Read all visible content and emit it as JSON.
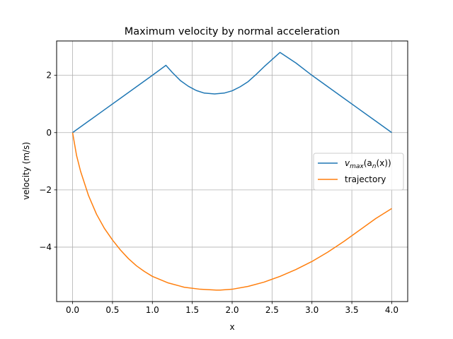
{
  "chart_data": {
    "type": "line",
    "title": "Maximum velocity by normal acceleration",
    "xlabel": "x",
    "ylabel": "velocity (m/s)",
    "xlim": [
      -0.2,
      4.2
    ],
    "ylim": [
      -5.9,
      3.2
    ],
    "xticks": [
      0.0,
      0.5,
      1.0,
      1.5,
      2.0,
      2.5,
      3.0,
      3.5,
      4.0
    ],
    "xtick_labels": [
      "0.0",
      "0.5",
      "1.0",
      "1.5",
      "2.0",
      "2.5",
      "3.0",
      "3.5",
      "4.0"
    ],
    "yticks": [
      2,
      0,
      -2,
      -4
    ],
    "ytick_labels": [
      "2",
      "0",
      "−2",
      "−4"
    ],
    "grid": true,
    "legend_position": "center-right",
    "series": [
      {
        "name": "v_max(a_n(x))",
        "legend_parts": {
          "v": "v",
          "max": "max",
          "open": "(a",
          "n": "n",
          "close": "(x))"
        },
        "color": "#1f77b4",
        "x": [
          0.0,
          0.2,
          0.4,
          0.6,
          0.8,
          1.0,
          1.17,
          1.25,
          1.35,
          1.45,
          1.55,
          1.65,
          1.78,
          1.9,
          2.0,
          2.1,
          2.2,
          2.3,
          2.4,
          2.5,
          2.6,
          2.8,
          3.0,
          3.2,
          3.4,
          3.6,
          3.8,
          4.0
        ],
        "y": [
          0.0,
          0.4,
          0.8,
          1.2,
          1.6,
          2.0,
          2.35,
          2.1,
          1.82,
          1.62,
          1.47,
          1.38,
          1.35,
          1.38,
          1.46,
          1.6,
          1.78,
          2.03,
          2.3,
          2.55,
          2.8,
          2.43,
          2.0,
          1.6,
          1.2,
          0.8,
          0.4,
          0.0
        ]
      },
      {
        "name": "trajectory",
        "color": "#ff7f0e",
        "x": [
          0.0,
          0.05,
          0.1,
          0.2,
          0.3,
          0.4,
          0.5,
          0.6,
          0.7,
          0.8,
          0.9,
          1.0,
          1.2,
          1.4,
          1.6,
          1.8,
          1.85,
          2.0,
          2.2,
          2.4,
          2.6,
          2.8,
          3.0,
          3.2,
          3.4,
          3.6,
          3.8,
          4.0
        ],
        "y": [
          0.0,
          -0.8,
          -1.35,
          -2.2,
          -2.85,
          -3.35,
          -3.75,
          -4.1,
          -4.4,
          -4.65,
          -4.85,
          -5.02,
          -5.25,
          -5.4,
          -5.47,
          -5.5,
          -5.5,
          -5.47,
          -5.37,
          -5.22,
          -5.02,
          -4.78,
          -4.5,
          -4.17,
          -3.8,
          -3.4,
          -3.0,
          -2.65
        ]
      }
    ]
  }
}
